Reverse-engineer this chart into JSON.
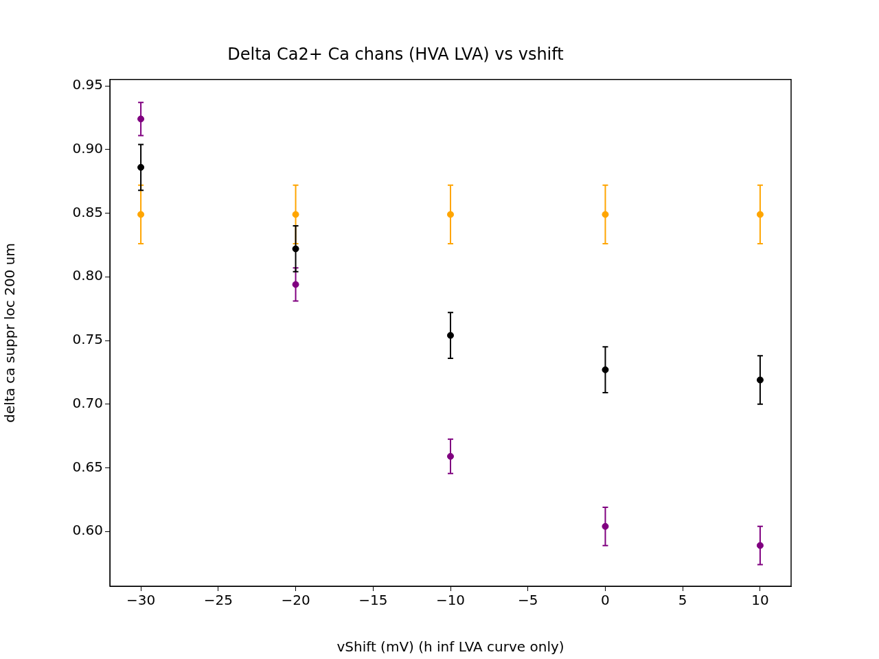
{
  "chart_data": {
    "type": "scatter",
    "title": "Delta Ca2+ Ca chans (HVA LVA) vs vshift",
    "xlabel": "vShift (mV) (h inf LVA curve only)",
    "ylabel": "delta ca suppr loc 200 um",
    "x": [
      -30,
      -20,
      -10,
      0,
      10
    ],
    "series": [
      {
        "color": "#800080",
        "values": [
          0.924,
          0.794,
          0.659,
          0.604,
          0.589
        ],
        "errors": [
          0.013,
          0.013,
          0.0135,
          0.015,
          0.015
        ]
      },
      {
        "color": "#ffa500",
        "values": [
          0.849,
          0.849,
          0.849,
          0.849,
          0.849
        ],
        "errors": [
          0.023,
          0.023,
          0.023,
          0.023,
          0.023
        ]
      },
      {
        "color": "#000000",
        "values": [
          0.886,
          0.822,
          0.754,
          0.727,
          0.719
        ],
        "errors": [
          0.018,
          0.018,
          0.018,
          0.018,
          0.019
        ]
      }
    ],
    "xlim": [
      -32,
      12
    ],
    "ylim": [
      0.557,
      0.955
    ],
    "xticks": [
      {
        "value": -30,
        "label": "−30"
      },
      {
        "value": -25,
        "label": "−25"
      },
      {
        "value": -20,
        "label": "−20"
      },
      {
        "value": -15,
        "label": "−15"
      },
      {
        "value": -10,
        "label": "−10"
      },
      {
        "value": -5,
        "label": "−5"
      },
      0,
      5,
      10
    ],
    "yticks": [
      {
        "value": 0.6,
        "label": "0.60"
      },
      {
        "value": 0.65,
        "label": "0.65"
      },
      {
        "value": 0.7,
        "label": "0.70"
      },
      {
        "value": 0.75,
        "label": "0.75"
      },
      {
        "value": 0.8,
        "label": "0.80"
      },
      {
        "value": 0.85,
        "label": "0.85"
      },
      {
        "value": 0.9,
        "label": "0.90"
      },
      {
        "value": 0.95,
        "label": "0.95"
      }
    ],
    "grid": false,
    "legend": false,
    "marker": "circle"
  }
}
